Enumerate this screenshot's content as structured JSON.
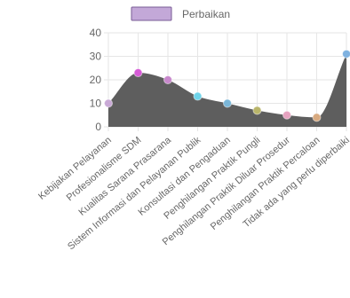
{
  "chart_data": {
    "type": "area",
    "categories": [
      "Kebijakan Pelayanan",
      "Profesionalisme SDM",
      "Kualitas Sarana Prasarana",
      "Sistem Informasi dan Pelayanan Publik",
      "Konsultasi dan Pengaduan",
      "Penghilangan Praktik Pungli",
      "Penghilangan Praktik Diluar Prosedur",
      "Penghilangan Praktik Percaloan",
      "Tidak ada yang perlu diperbaiki"
    ],
    "series": [
      {
        "name": "Perbaikan",
        "values": [
          10,
          23,
          20,
          13,
          10,
          7,
          5,
          4,
          31
        ]
      }
    ],
    "ylim": [
      0,
      40
    ],
    "yticks": [
      0,
      10,
      20,
      30,
      40
    ],
    "grid": true,
    "legend": "top-center",
    "xlabel": "",
    "ylabel": "",
    "title": ""
  },
  "colors": {
    "area_fill": "#5e5e5e",
    "legend_swatch_fill": "#c3a8d8",
    "legend_swatch_border": "#7a5c96",
    "grid": "#e6e6e6",
    "axis_text": "#666666",
    "point_colors": [
      "#c9a9d6",
      "#d65ad6",
      "#c888cc",
      "#6fd4ea",
      "#7ab6d8",
      "#b9b56a",
      "#e6a3c0",
      "#d8aa80",
      "#7fb2e0"
    ]
  }
}
